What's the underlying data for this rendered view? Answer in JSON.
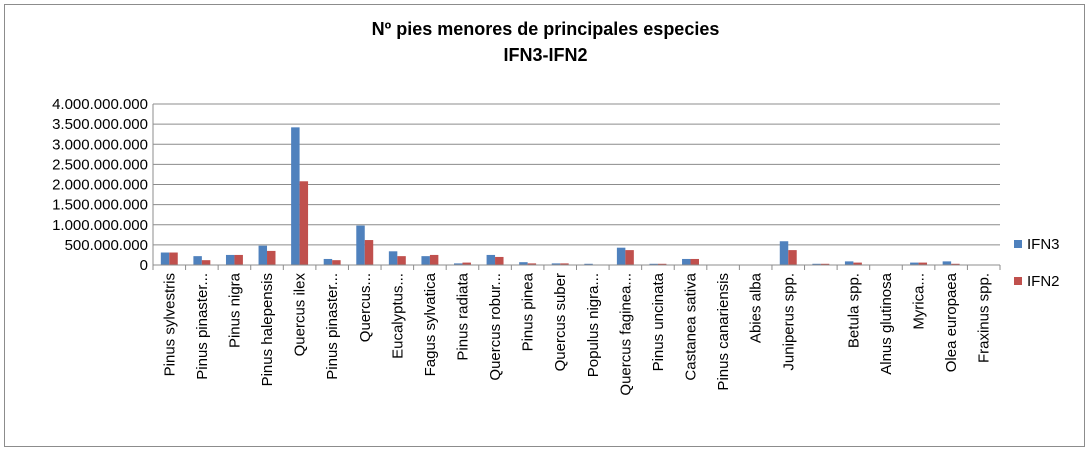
{
  "chart_data": {
    "type": "bar",
    "title_line1": "Nº pies menores de principales especies",
    "title_line2": "IFN3-IFN2",
    "xlabel": "",
    "ylabel": "",
    "ylim": [
      0,
      4000000000
    ],
    "ytick_values": [
      0,
      500000000,
      1000000000,
      1500000000,
      2000000000,
      2500000000,
      3000000000,
      3500000000,
      4000000000
    ],
    "ytick_labels": [
      "0",
      "500.000.000",
      "1.000.000.000",
      "1.500.000.000",
      "2.000.000.000",
      "2.500.000.000",
      "3.000.000.000",
      "3.500.000.000",
      "4.000.000.000"
    ],
    "grid": true,
    "legend_position": "right",
    "categories": [
      "Pinus sylvestris",
      "Pinus pinaster...",
      "Pinus nigra",
      "Pinus halepensis",
      "Quercus ilex",
      "Pinus pinaster...",
      "Quercus...",
      "Eucalyptus...",
      "Fagus sylvatica",
      "Pinus radiata",
      "Quercus robur...",
      "Pinus pinea",
      "Quercus suber",
      "Populus nigra...",
      "Quercus faginea...",
      "Pinus uncinata",
      "Castanea sativa",
      "Pinus canariensis",
      "Abies alba",
      "Juniperus spp.",
      "",
      "Betula spp.",
      "Alnus glutinosa",
      "Myrica...",
      "Olea europaea",
      "Fraxinus spp."
    ],
    "series": [
      {
        "name": "IFN3",
        "color": "#4f81bd",
        "values": [
          310000000,
          220000000,
          250000000,
          480000000,
          3420000000,
          150000000,
          980000000,
          340000000,
          220000000,
          40000000,
          250000000,
          70000000,
          40000000,
          30000000,
          430000000,
          30000000,
          150000000,
          0,
          0,
          590000000,
          30000000,
          90000000,
          0,
          60000000,
          90000000,
          0
        ]
      },
      {
        "name": "IFN2",
        "color": "#c0504d",
        "values": [
          310000000,
          120000000,
          250000000,
          350000000,
          2080000000,
          120000000,
          620000000,
          220000000,
          250000000,
          60000000,
          200000000,
          40000000,
          40000000,
          0,
          370000000,
          30000000,
          150000000,
          0,
          0,
          370000000,
          30000000,
          60000000,
          0,
          60000000,
          30000000,
          0
        ]
      }
    ]
  }
}
